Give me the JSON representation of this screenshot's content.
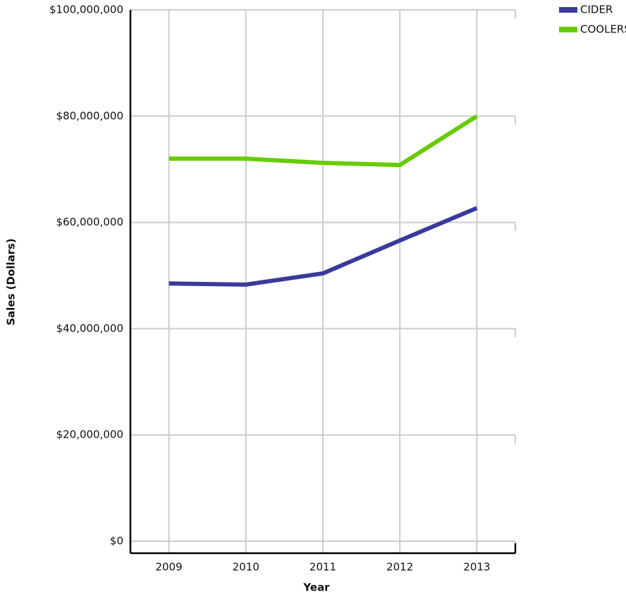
{
  "chart_data": {
    "type": "line",
    "xlabel": "Year",
    "ylabel": "Sales (Dollars)",
    "categories": [
      "2009",
      "2010",
      "2011",
      "2012",
      "2013"
    ],
    "series": [
      {
        "name": "CIDER",
        "color": "#3a3a9c",
        "values": [
          48500000.0,
          48300000.0,
          50400000.0,
          56600000.0,
          62700000.0
        ]
      },
      {
        "name": "COOLERS",
        "color": "#66cc00",
        "values": [
          72000000.0,
          72000000.0,
          71200000.0,
          70800000.0,
          80000000.0
        ]
      }
    ],
    "ylim": [
      0,
      100000000
    ],
    "yticks": [
      {
        "value": 0,
        "label": "$0"
      },
      {
        "value": 20000000,
        "label": "$20,000,000"
      },
      {
        "value": 40000000,
        "label": "$40,000,000"
      },
      {
        "value": 60000000,
        "label": "$60,000,000"
      },
      {
        "value": 80000000,
        "label": "$80,000,000"
      },
      {
        "value": 100000000,
        "label": "$100,000,000"
      }
    ],
    "grid": true,
    "legend": "top-right"
  }
}
